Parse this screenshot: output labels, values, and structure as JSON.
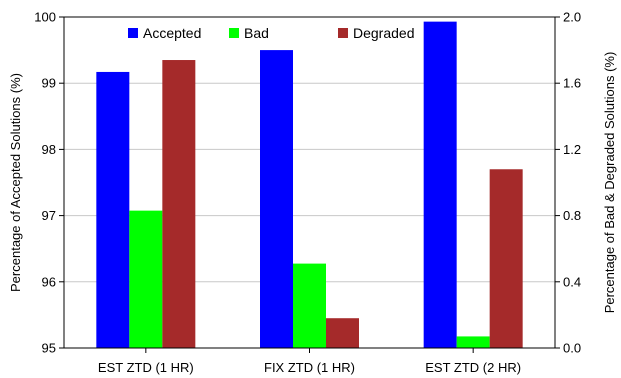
{
  "chart_data": {
    "type": "bar",
    "categories": [
      "EST ZTD (1 HR)",
      "FIX ZTD (1 HR)",
      "EST ZTD (2 HR)"
    ],
    "series": [
      {
        "name": "Accepted",
        "axis": "left",
        "color": "#0000ff",
        "values": [
          99.17,
          99.5,
          99.93
        ]
      },
      {
        "name": "Bad",
        "axis": "right",
        "color": "#00ff00",
        "values": [
          0.83,
          0.51,
          0.07
        ]
      },
      {
        "name": "Degraded",
        "axis": "right",
        "color": "#a52a2a",
        "values": [
          1.74,
          0.18,
          1.08
        ]
      }
    ],
    "ylabel_left": "Percentage of Accepted Solutions (%)",
    "ylabel_right": "Percentage of Bad & Degraded Solutions (%)",
    "ylim_left": [
      95,
      100
    ],
    "ylim_right": [
      0,
      2
    ],
    "yticks_left": [
      "95",
      "96",
      "97",
      "98",
      "99",
      "100"
    ],
    "yticks_right": [
      "0.0",
      "0.4",
      "0.8",
      "1.2",
      "1.6",
      "2.0"
    ],
    "grid": true,
    "legend_position": "top"
  }
}
